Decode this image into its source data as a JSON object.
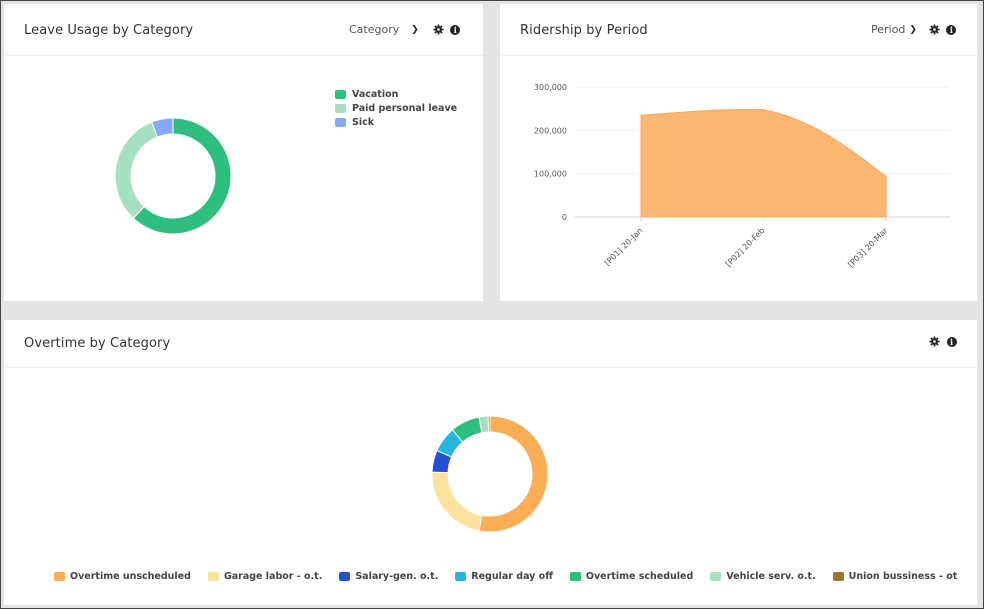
{
  "leave_panel": {
    "title": "Leave Usage by Category",
    "dropdown_label": "Category",
    "icons": [
      "gear-icon",
      "info-icon"
    ]
  },
  "ridership_panel": {
    "title": "Ridership by Period",
    "dropdown_label": "Period",
    "icons": [
      "gear-icon",
      "info-icon"
    ]
  },
  "overtime_panel": {
    "title": "Overtime by Category",
    "icons": [
      "gear-icon",
      "info-icon"
    ]
  },
  "chart_data": [
    {
      "type": "pie",
      "title": "Leave Usage by Category",
      "categories": [
        "Vacation",
        "Paid personal leave",
        "Sick"
      ],
      "values": [
        62,
        32,
        6
      ],
      "colors": [
        "#2ebf7f",
        "#a6e0c2",
        "#85a8f7"
      ],
      "legend": "top-right"
    },
    {
      "type": "area",
      "title": "Ridership by Period",
      "x": [
        "[P01] 20-Jan",
        "[P02] 20-Feb",
        "[P03] 20-Mar"
      ],
      "values": [
        235000,
        248000,
        93000
      ],
      "ylim": [
        0,
        300000
      ],
      "yticks": [
        "0",
        "100,000",
        "200,000",
        "300,000"
      ],
      "color": "#fbb672"
    },
    {
      "type": "pie",
      "title": "Overtime by Category",
      "categories": [
        "Overtime unscheduled",
        "Garage labor - o.t.",
        "Salary-gen. o.t.",
        "Regular day off",
        "Overtime scheduled",
        "Vehicle serv. o.t.",
        "Union bussiness - ot"
      ],
      "values": [
        52,
        22,
        6,
        7,
        8,
        2.5,
        0.5
      ],
      "colors": [
        "#fbad55",
        "#fce19d",
        "#2251d4",
        "#24b6df",
        "#2ebf7f",
        "#a6e0c2",
        "#9b7230"
      ],
      "legend": "bottom"
    }
  ]
}
